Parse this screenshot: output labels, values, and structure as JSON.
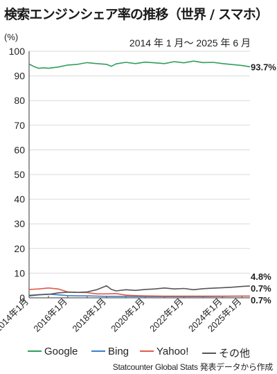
{
  "title": "検索エンジンシェア率の推移（世界 / スマホ）",
  "source": "Statcounter Global Stats 発表データから作成",
  "chart_data": {
    "type": "line",
    "ylabel": "(%)",
    "period": "2014 年 1 月〜 2025 年 6 月",
    "ylim": [
      0,
      100
    ],
    "yticks": [
      0,
      10,
      20,
      30,
      40,
      50,
      60,
      70,
      80,
      90,
      100
    ],
    "x_start": "2014-01",
    "x_end": "2025-06",
    "x_ticks": [
      "2014年1月",
      "2016年1月",
      "2018年1月",
      "2020年1月",
      "2022年1月",
      "2024年1月",
      "2025年1月"
    ],
    "grid": true,
    "legend_position": "bottom",
    "series": [
      {
        "name": "Google",
        "color": "#2e9e5b",
        "end_label": "93.7%",
        "points": [
          [
            "2014-01",
            94.8
          ],
          [
            "2014-04",
            93.8
          ],
          [
            "2014-07",
            93.1
          ],
          [
            "2014-10",
            93.3
          ],
          [
            "2015-01",
            93.1
          ],
          [
            "2015-07",
            93.6
          ],
          [
            "2016-01",
            94.4
          ],
          [
            "2016-07",
            94.7
          ],
          [
            "2017-01",
            95.4
          ],
          [
            "2017-07",
            95.0
          ],
          [
            "2018-01",
            94.7
          ],
          [
            "2018-04",
            93.9
          ],
          [
            "2018-07",
            94.9
          ],
          [
            "2019-01",
            95.5
          ],
          [
            "2019-07",
            95.0
          ],
          [
            "2020-01",
            95.6
          ],
          [
            "2020-07",
            95.3
          ],
          [
            "2021-01",
            95.0
          ],
          [
            "2021-07",
            95.8
          ],
          [
            "2022-01",
            95.3
          ],
          [
            "2022-07",
            96.0
          ],
          [
            "2023-01",
            95.4
          ],
          [
            "2023-07",
            95.5
          ],
          [
            "2024-01",
            95.0
          ],
          [
            "2024-07",
            94.6
          ],
          [
            "2025-01",
            94.2
          ],
          [
            "2025-06",
            93.7
          ]
        ]
      },
      {
        "name": "Bing",
        "color": "#3a7ec8",
        "end_label": "0.7%",
        "points": [
          [
            "2014-01",
            1.0
          ],
          [
            "2014-07",
            1.3
          ],
          [
            "2015-01",
            1.5
          ],
          [
            "2015-07",
            1.2
          ],
          [
            "2016-01",
            0.9
          ],
          [
            "2016-07",
            0.8
          ],
          [
            "2017-01",
            0.8
          ],
          [
            "2017-07",
            0.7
          ],
          [
            "2018-01",
            0.6
          ],
          [
            "2018-07",
            0.6
          ],
          [
            "2019-01",
            0.6
          ],
          [
            "2020-01",
            0.5
          ],
          [
            "2021-01",
            0.5
          ],
          [
            "2022-01",
            0.5
          ],
          [
            "2023-01",
            0.5
          ],
          [
            "2024-01",
            0.6
          ],
          [
            "2025-01",
            0.7
          ],
          [
            "2025-06",
            0.7
          ]
        ]
      },
      {
        "name": "Yahoo!",
        "color": "#e05a47",
        "end_label": "0.7%",
        "points": [
          [
            "2014-01",
            3.4
          ],
          [
            "2014-07",
            3.6
          ],
          [
            "2015-01",
            4.0
          ],
          [
            "2015-07",
            3.6
          ],
          [
            "2016-01",
            2.4
          ],
          [
            "2016-07",
            2.2
          ],
          [
            "2017-01",
            2.1
          ],
          [
            "2017-07",
            1.6
          ],
          [
            "2018-01",
            1.6
          ],
          [
            "2018-07",
            1.7
          ],
          [
            "2019-01",
            1.1
          ],
          [
            "2019-07",
            0.9
          ],
          [
            "2020-01",
            0.8
          ],
          [
            "2021-01",
            0.7
          ],
          [
            "2022-01",
            0.7
          ],
          [
            "2023-01",
            0.7
          ],
          [
            "2024-01",
            0.7
          ],
          [
            "2025-01",
            0.7
          ],
          [
            "2025-06",
            0.7
          ]
        ]
      },
      {
        "name": "その他",
        "color": "#555555",
        "end_label": "4.8%",
        "points": [
          [
            "2014-01",
            0.8
          ],
          [
            "2014-07",
            1.2
          ],
          [
            "2015-01",
            1.4
          ],
          [
            "2015-07",
            2.0
          ],
          [
            "2016-01",
            2.3
          ],
          [
            "2016-07",
            2.2
          ],
          [
            "2017-01",
            2.4
          ],
          [
            "2017-07",
            3.3
          ],
          [
            "2018-01",
            4.9
          ],
          [
            "2018-04",
            3.4
          ],
          [
            "2018-07",
            2.8
          ],
          [
            "2019-01",
            3.3
          ],
          [
            "2019-07",
            3.0
          ],
          [
            "2020-01",
            3.4
          ],
          [
            "2020-07",
            3.6
          ],
          [
            "2021-01",
            4.0
          ],
          [
            "2021-07",
            3.6
          ],
          [
            "2022-01",
            3.8
          ],
          [
            "2022-07",
            3.3
          ],
          [
            "2023-01",
            3.7
          ],
          [
            "2023-07",
            3.9
          ],
          [
            "2024-01",
            4.1
          ],
          [
            "2024-07",
            4.3
          ],
          [
            "2025-01",
            4.6
          ],
          [
            "2025-06",
            4.8
          ]
        ]
      }
    ]
  }
}
